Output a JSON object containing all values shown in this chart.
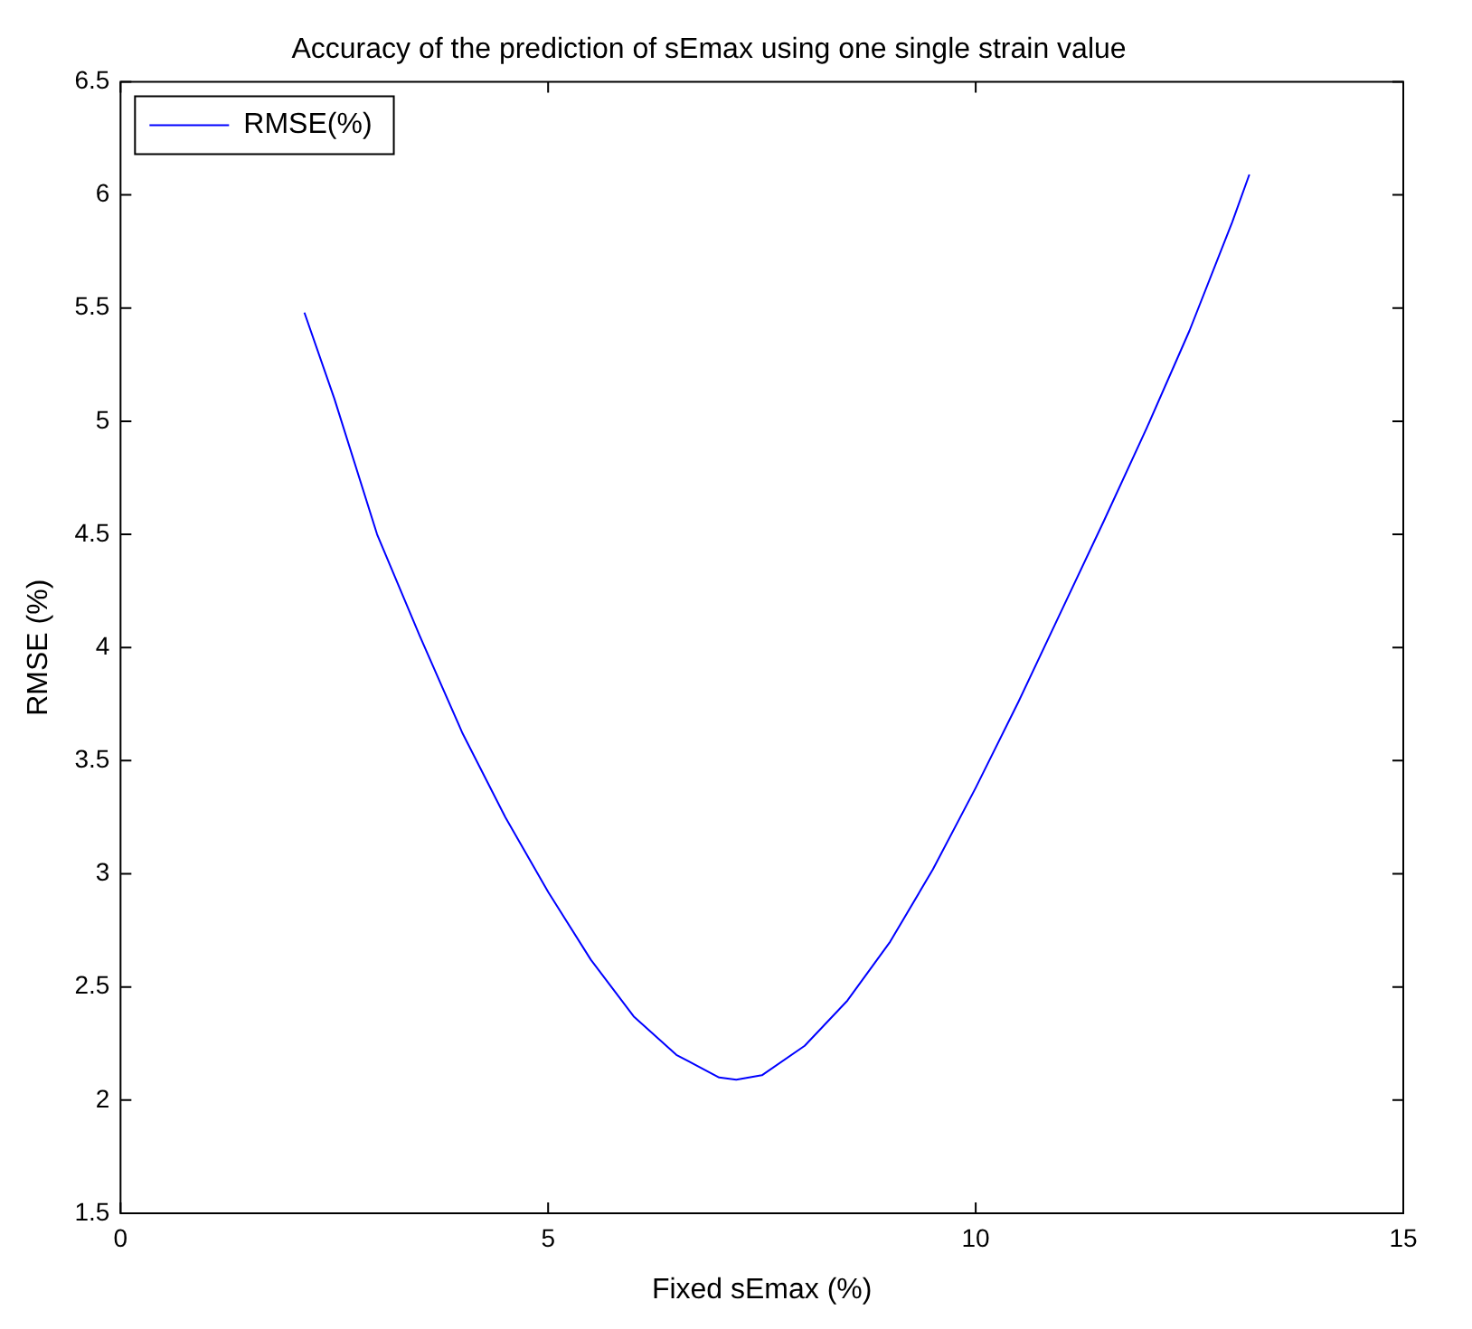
{
  "chart_data": {
    "type": "line",
    "title": "Accuracy of the prediction of sEmax using one single strain value",
    "xlabel": "Fixed sEmax (%)",
    "ylabel": "RMSE (%)",
    "x": [
      2.15,
      2.5,
      3,
      3.5,
      4,
      4.5,
      5,
      5.5,
      6,
      6.5,
      7,
      7.2,
      7.5,
      8,
      8.5,
      9,
      9.5,
      10,
      10.5,
      11,
      11.5,
      12,
      12.5,
      13,
      13.2
    ],
    "series": [
      {
        "name": "RMSE(%)",
        "color": "#0000ff",
        "values": [
          5.48,
          5.1,
          4.5,
          4.05,
          3.62,
          3.25,
          2.92,
          2.62,
          2.37,
          2.2,
          2.1,
          2.09,
          2.11,
          2.24,
          2.44,
          2.7,
          3.02,
          3.38,
          3.76,
          4.16,
          4.56,
          4.97,
          5.4,
          5.88,
          6.09
        ]
      }
    ],
    "xlim": [
      0,
      15
    ],
    "xticks": [
      0,
      5,
      10,
      15
    ],
    "ylim": [
      1.5,
      6.5
    ],
    "yticks": [
      1.5,
      2,
      2.5,
      3,
      3.5,
      4,
      4.5,
      5,
      5.5,
      6,
      6.5
    ],
    "grid": false,
    "legend": "top left",
    "marker": "none",
    "line_style": "solid"
  }
}
